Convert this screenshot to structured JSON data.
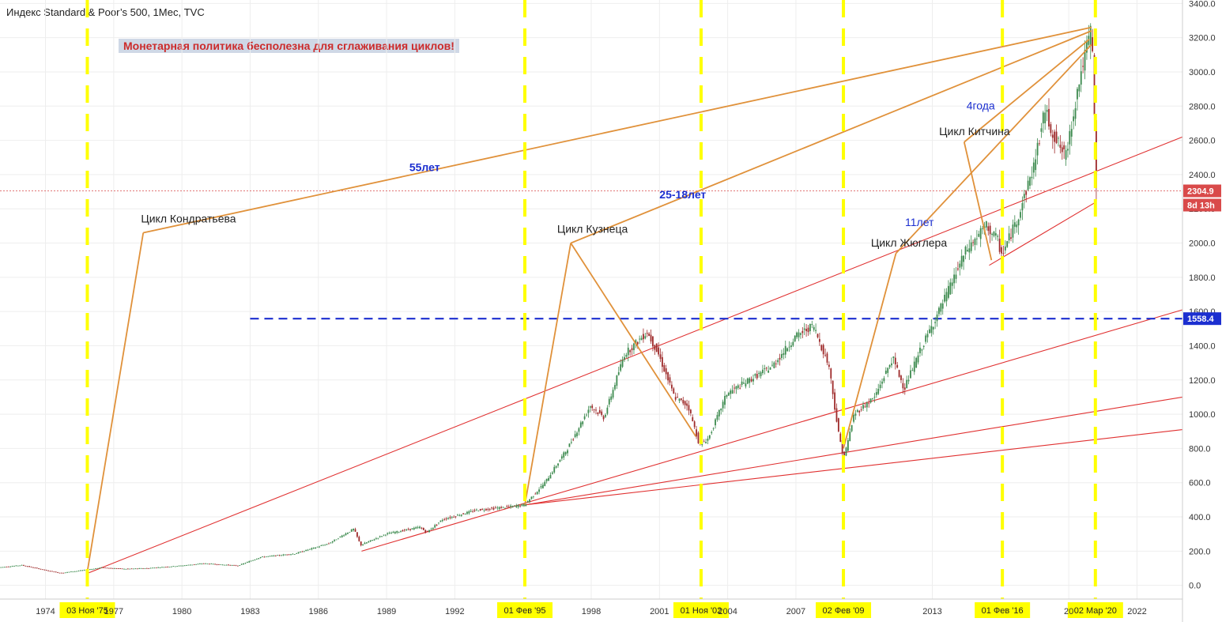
{
  "header": {
    "title": "Индекс Standard & Poor’s 500, 1Мес, TVC"
  },
  "banner": {
    "text": "Монетарная политика бесполезна для сглаживания циклов!"
  },
  "colors": {
    "grid": "#eeeeee",
    "up": "#3c8a4e",
    "down": "#9e2a2a",
    "cycle": "#e0913a",
    "trend": "#e03030",
    "marker": "#ffff00",
    "level": "#1c2fd0",
    "last_price_line": "#d94a4a",
    "axis_text": "#333333"
  },
  "annotations": {
    "cycles": [
      {
        "label": "Цикл Кондратьева",
        "period": "55лет"
      },
      {
        "label": "Цикл Кузнеца",
        "period": "25-18лет"
      },
      {
        "label": "Цикл Жюглера",
        "period": "11лет"
      },
      {
        "label": "Цикл Китчина",
        "period": "4года"
      }
    ]
  },
  "chart_data": {
    "type": "candlestick",
    "symbol": "Индекс Standard & Poor’s 500",
    "interval": "1Мес",
    "source": "TVC",
    "xlim": [
      1972.0,
      2024.0
    ],
    "ylim": [
      -80,
      3420
    ],
    "y_ticks": [
      "0.0",
      "200.0",
      "400.0",
      "600.0",
      "800.0",
      "1000.0",
      "1200.0",
      "1400.0",
      "1600.0",
      "1800.0",
      "2000.0",
      "2200.0",
      "2400.0",
      "2600.0",
      "2800.0",
      "3000.0",
      "3200.0",
      "3400.0"
    ],
    "x_tick_labels": [
      "1974",
      "1977",
      "1980",
      "1983",
      "1986",
      "1989",
      "1992",
      "1998",
      "2001",
      "2004",
      "2007",
      "2013",
      "20",
      "2022"
    ],
    "x_tick_years": [
      1974,
      1977,
      1980,
      1983,
      1986,
      1989,
      1992,
      1998,
      2001,
      2004,
      2007,
      2013,
      2019,
      2022
    ],
    "series_points": [
      [
        1972.0,
        105
      ],
      [
        1973.0,
        118
      ],
      [
        1974.0,
        90
      ],
      [
        1974.7,
        72
      ],
      [
        1975.8,
        90
      ],
      [
        1976.5,
        104
      ],
      [
        1977.5,
        96
      ],
      [
        1978.5,
        100
      ],
      [
        1980.0,
        115
      ],
      [
        1981.0,
        128
      ],
      [
        1982.5,
        115
      ],
      [
        1983.5,
        165
      ],
      [
        1985.0,
        185
      ],
      [
        1986.5,
        245
      ],
      [
        1987.6,
        330
      ],
      [
        1987.9,
        235
      ],
      [
        1989.0,
        300
      ],
      [
        1990.5,
        340
      ],
      [
        1990.8,
        310
      ],
      [
        1991.5,
        385
      ],
      [
        1993.0,
        440
      ],
      [
        1994.5,
        460
      ],
      [
        1995.1,
        470
      ],
      [
        1996.0,
        600
      ],
      [
        1997.0,
        800
      ],
      [
        1998.0,
        1050
      ],
      [
        1998.6,
        980
      ],
      [
        1999.5,
        1350
      ],
      [
        2000.5,
        1480
      ],
      [
        2001.0,
        1350
      ],
      [
        2001.7,
        1100
      ],
      [
        2002.3,
        1050
      ],
      [
        2002.8,
        820
      ],
      [
        2003.2,
        860
      ],
      [
        2004.0,
        1120
      ],
      [
        2005.0,
        1200
      ],
      [
        2006.0,
        1280
      ],
      [
        2007.0,
        1450
      ],
      [
        2007.8,
        1520
      ],
      [
        2008.5,
        1280
      ],
      [
        2008.9,
        900
      ],
      [
        2009.15,
        740
      ],
      [
        2009.6,
        1000
      ],
      [
        2010.5,
        1100
      ],
      [
        2011.3,
        1330
      ],
      [
        2011.8,
        1150
      ],
      [
        2012.5,
        1370
      ],
      [
        2013.5,
        1650
      ],
      [
        2014.5,
        1950
      ],
      [
        2015.4,
        2100
      ],
      [
        2015.9,
        2020
      ],
      [
        2016.1,
        1930
      ],
      [
        2016.8,
        2150
      ],
      [
        2017.5,
        2450
      ],
      [
        2018.0,
        2780
      ],
      [
        2018.3,
        2650
      ],
      [
        2018.9,
        2500
      ],
      [
        2019.5,
        2950
      ],
      [
        2020.0,
        3240
      ],
      [
        2020.15,
        2970
      ],
      [
        2020.2,
        2304.9
      ]
    ],
    "horizontal_level": 1558.4,
    "last_price": 2304.9,
    "countdown": "8d 13h",
    "vertical_markers": [
      {
        "year": 1975.84,
        "label": "03 Ноя '75"
      },
      {
        "year": 1995.08,
        "label": "01 Фев '95"
      },
      {
        "year": 2002.83,
        "label": "01 Ноя '02"
      },
      {
        "year": 2009.09,
        "label": "02 Фев '09"
      },
      {
        "year": 2016.08,
        "label": "01 Фев '16"
      },
      {
        "year": 2020.17,
        "label": "02 Мар '20"
      }
    ],
    "trendlines": [
      {
        "from": [
          1975.84,
          70
        ],
        "to": [
          2024.0,
          2620
        ]
      },
      {
        "from": [
          1987.9,
          200
        ],
        "to": [
          2024.0,
          1610
        ]
      },
      {
        "from": [
          1995.08,
          470
        ],
        "to": [
          2024.0,
          1100
        ]
      },
      {
        "from": [
          1995.08,
          470
        ],
        "to": [
          2024.0,
          910
        ]
      },
      {
        "from": [
          2015.5,
          1870
        ],
        "to": [
          2020.2,
          2240
        ]
      }
    ],
    "cycle_lines": [
      {
        "from": [
          1975.84,
          80
        ],
        "to": [
          1978.3,
          2060
        ]
      },
      {
        "from": [
          1978.3,
          2060
        ],
        "to": [
          2020.0,
          3260
        ]
      },
      {
        "from": [
          1995.08,
          470
        ],
        "to": [
          1997.1,
          2000
        ]
      },
      {
        "from": [
          1997.1,
          2000
        ],
        "to": [
          2020.0,
          3240
        ]
      },
      {
        "from": [
          1997.1,
          2000
        ],
        "to": [
          2002.6,
          870
        ]
      },
      {
        "from": [
          2009.09,
          800
        ],
        "to": [
          2011.4,
          1940
        ]
      },
      {
        "from": [
          2011.4,
          1940
        ],
        "to": [
          2020.0,
          3160
        ]
      },
      {
        "from": [
          2015.6,
          1900
        ],
        "to": [
          2014.4,
          2590
        ]
      },
      {
        "from": [
          2014.4,
          2590
        ],
        "to": [
          2019.9,
          3190
        ]
      }
    ],
    "annotation_positions": [
      {
        "text": "55лет",
        "x": 1990.0,
        "y": 2420,
        "bold": true
      },
      {
        "text": "25-18лет",
        "x": 2001.0,
        "y": 2260,
        "bold": true
      },
      {
        "text": "11лет",
        "x": 2011.8,
        "y": 2100,
        "bold": false
      },
      {
        "text": "4года",
        "x": 2014.5,
        "y": 2780,
        "bold": false
      },
      {
        "text": "Цикл Кондратьева",
        "x": 1978.2,
        "y": 2120,
        "bold": false
      },
      {
        "text": "Цикл Кузнеца",
        "x": 1996.5,
        "y": 2060,
        "bold": false
      },
      {
        "text": "Цикл Жюглера",
        "x": 2010.3,
        "y": 1980,
        "bold": false
      },
      {
        "text": "Цикл Китчина",
        "x": 2013.3,
        "y": 2630,
        "bold": false
      }
    ]
  }
}
